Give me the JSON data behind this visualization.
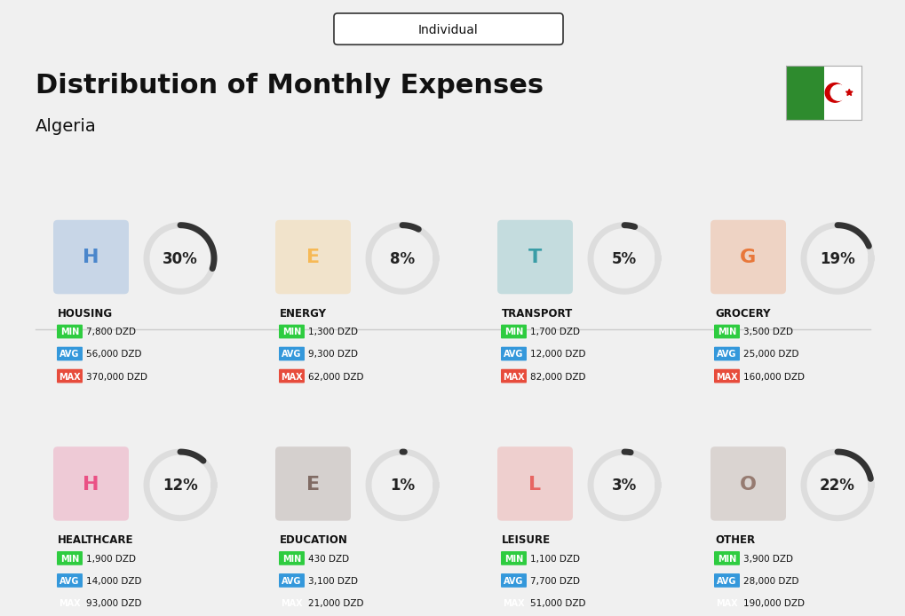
{
  "title": "Distribution of Monthly Expenses",
  "subtitle": "Individual",
  "country": "Algeria",
  "bg_color": "#f0f0f0",
  "categories": [
    {
      "name": "HOUSING",
      "pct": 30,
      "min_val": "7,800 DZD",
      "avg_val": "56,000 DZD",
      "max_val": "370,000 DZD",
      "row": 0,
      "col": 0
    },
    {
      "name": "ENERGY",
      "pct": 8,
      "min_val": "1,300 DZD",
      "avg_val": "9,300 DZD",
      "max_val": "62,000 DZD",
      "row": 0,
      "col": 1
    },
    {
      "name": "TRANSPORT",
      "pct": 5,
      "min_val": "1,700 DZD",
      "avg_val": "12,000 DZD",
      "max_val": "82,000 DZD",
      "row": 0,
      "col": 2
    },
    {
      "name": "GROCERY",
      "pct": 19,
      "min_val": "3,500 DZD",
      "avg_val": "25,000 DZD",
      "max_val": "160,000 DZD",
      "row": 0,
      "col": 3
    },
    {
      "name": "HEALTHCARE",
      "pct": 12,
      "min_val": "1,900 DZD",
      "avg_val": "14,000 DZD",
      "max_val": "93,000 DZD",
      "row": 1,
      "col": 0
    },
    {
      "name": "EDUCATION",
      "pct": 1,
      "min_val": "430 DZD",
      "avg_val": "3,100 DZD",
      "max_val": "21,000 DZD",
      "row": 1,
      "col": 1
    },
    {
      "name": "LEISURE",
      "pct": 3,
      "min_val": "1,100 DZD",
      "avg_val": "7,700 DZD",
      "max_val": "51,000 DZD",
      "row": 1,
      "col": 2
    },
    {
      "name": "OTHER",
      "pct": 22,
      "min_val": "3,900 DZD",
      "avg_val": "28,000 DZD",
      "max_val": "190,000 DZD",
      "row": 1,
      "col": 3
    }
  ],
  "min_color": "#2ecc40",
  "avg_color": "#3498db",
  "max_color": "#e74c3c",
  "label_color": "#ffffff",
  "arc_color": "#333333",
  "arc_bg_color": "#dddddd",
  "title_color": "#111111",
  "cat_name_color": "#111111",
  "pct_color": "#222222",
  "flag_green": "#2e8b2e",
  "flag_white": "#ffffff",
  "flag_red": "#cc0000"
}
